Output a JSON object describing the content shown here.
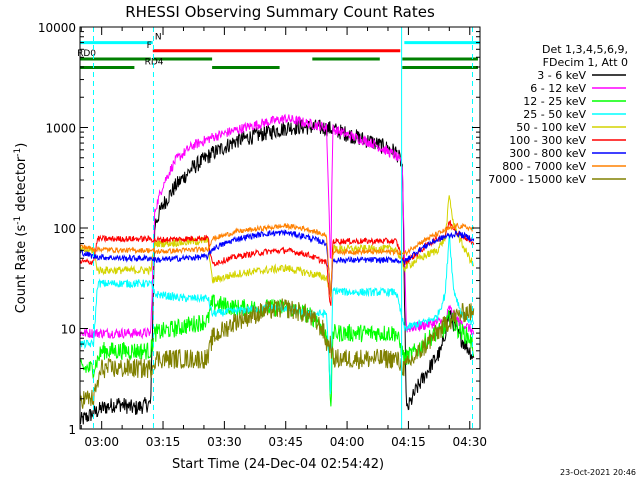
{
  "chart_data": {
    "type": "line",
    "title": "RHESSI Observing Summary Count Rates",
    "xlabel": "Start Time (24-Dec-04 02:54:42)",
    "ylabel": "Count Rate (s⁻¹ detector⁻¹)",
    "ylabel_parts": {
      "main": "Count Rate (s",
      "exp1": "-1",
      "mid": " detector",
      "exp2": "-1",
      "end": ")"
    },
    "yscale": "log",
    "ylim": [
      1,
      10000
    ],
    "xlim": [
      "02:54:42",
      "04:32:30"
    ],
    "xticks": [
      "03:00",
      "03:15",
      "03:30",
      "03:45",
      "04:00",
      "04:15",
      "04:30"
    ],
    "yticks": [
      "1",
      "10",
      "100",
      "1000",
      "10000"
    ],
    "timestamp": "23-Oct-2021 20:46",
    "legend": {
      "placement": "right",
      "header": [
        "Det 1,3,4,5,6,9,",
        "FDecim 1, Att 0"
      ],
      "entries": [
        {
          "name": "3 - 6 keV",
          "color": "#000000"
        },
        {
          "name": "6 - 12 keV",
          "color": "#ff00ff"
        },
        {
          "name": "12 - 25 keV",
          "color": "#00ff00"
        },
        {
          "name": "25 - 50 keV",
          "color": "#00ffff"
        },
        {
          "name": "50 - 100 keV",
          "color": "#d4d400"
        },
        {
          "name": "100 - 300 keV",
          "color": "#ff0000"
        },
        {
          "name": "300 - 800 keV",
          "color": "#0000ff"
        },
        {
          "name": "800 - 7000 keV",
          "color": "#ff8000"
        },
        {
          "name": "7000 - 15000 keV",
          "color": "#808000"
        }
      ]
    },
    "flags": [
      {
        "label": "N",
        "color": "#00ffff",
        "y_value": 7000,
        "segments": [
          [
            "02:54:42",
            "03:12:30"
          ],
          [
            "04:14:00",
            "04:32:30"
          ]
        ],
        "label_at": "03:13:00"
      },
      {
        "label": "F",
        "color": "#ff0000",
        "y_value": 5800,
        "segments": [
          [
            "03:12:30",
            "04:13:00"
          ]
        ],
        "label_at": "03:11:00"
      },
      {
        "label": "RD0",
        "color": "#008000",
        "y_value": 4800,
        "segments": [
          [
            "02:54:42",
            "03:12:00"
          ],
          [
            "03:12:30",
            "03:27:00"
          ],
          [
            "03:51:30",
            "04:08:00"
          ],
          [
            "04:13:30",
            "04:32:00"
          ]
        ],
        "label_at": "02:54:00"
      },
      {
        "label": "RD4",
        "color": "#008000",
        "y_value": 3950,
        "segments": [
          [
            "02:54:42",
            "03:08:00"
          ],
          [
            "03:27:00",
            "03:43:30"
          ],
          [
            "04:13:30",
            "04:32:00"
          ]
        ],
        "label_at": "03:10:30"
      }
    ],
    "vlines": [
      {
        "x": "02:54:42",
        "color": "#00ffff",
        "style": "solid"
      },
      {
        "x": "02:58:00",
        "color": "#00ffff",
        "style": "dashed"
      },
      {
        "x": "03:12:40",
        "color": "#00ffff",
        "style": "dashed"
      },
      {
        "x": "04:13:20",
        "color": "#00ffff",
        "style": "solid"
      },
      {
        "x": "04:30:40",
        "color": "#00ffff",
        "style": "dashed"
      }
    ],
    "series": [
      {
        "name": "3 - 6 keV",
        "color": "#000000",
        "noise": 0.08,
        "x": [
          "02:54:42",
          "03:00:00",
          "03:04:00",
          "03:08:00",
          "03:12:00",
          "03:13:00",
          "03:15:00",
          "03:18:00",
          "03:22:00",
          "03:27:00",
          "03:33:00",
          "03:40:00",
          "03:46:00",
          "03:52:00",
          "03:56:00",
          "04:00:00",
          "04:06:00",
          "04:12:00",
          "04:13:30",
          "04:14:30",
          "04:17:00",
          "04:20:00",
          "04:23:00",
          "04:25:00",
          "04:27:00",
          "04:30:00",
          "04:31:00"
        ],
        "y": [
          1.2,
          1.6,
          1.8,
          1.6,
          1.8,
          110,
          170,
          260,
          390,
          550,
          740,
          880,
          1010,
          1010,
          970,
          860,
          720,
          570,
          430,
          1.5,
          2.5,
          4,
          6,
          14,
          9,
          6,
          5
        ]
      },
      {
        "name": "6 - 12 keV",
        "color": "#ff00ff",
        "noise": 0.05,
        "x": [
          "02:54:42",
          "03:00:00",
          "03:05:00",
          "03:12:00",
          "03:13:00",
          "03:15:00",
          "03:18:00",
          "03:22:00",
          "03:27:00",
          "03:33:00",
          "03:40:00",
          "03:45:00",
          "03:50:00",
          "03:55:00",
          "03:56:00",
          "03:56:30",
          "03:57:00",
          "04:00:00",
          "04:06:00",
          "04:12:00",
          "04:13:30",
          "04:14:30",
          "04:20:00",
          "04:24:00",
          "04:25:00",
          "04:27:00",
          "04:30:00",
          "04:31:00"
        ],
        "y": [
          9,
          9,
          9,
          9,
          150,
          270,
          470,
          650,
          800,
          950,
          1120,
          1230,
          1110,
          1000,
          40,
          950,
          950,
          850,
          700,
          520,
          420,
          10,
          11,
          12,
          16,
          12,
          10,
          9
        ]
      },
      {
        "name": "12 - 25 keV",
        "color": "#00ff00",
        "noise": 0.09,
        "x": [
          "02:54:42",
          "02:58:00",
          "03:00:00",
          "03:06:00",
          "03:12:00",
          "03:13:00",
          "03:18:00",
          "03:22:00",
          "03:26:00",
          "03:27:00",
          "03:33:00",
          "03:40:00",
          "03:45:00",
          "03:50:00",
          "03:53:00",
          "03:55:00",
          "03:55:30",
          "03:56:00",
          "03:56:30",
          "04:00:00",
          "04:06:00",
          "04:12:00",
          "04:14:00",
          "04:17:00",
          "04:20:00",
          "04:24:00",
          "04:25:00",
          "04:27:00",
          "04:30:00",
          "04:31:00"
        ],
        "y": [
          4,
          4,
          6,
          6,
          6,
          9,
          10,
          11,
          12,
          18,
          16,
          16,
          16,
          14,
          12,
          8,
          8,
          1.2,
          9,
          9,
          9,
          9,
          5,
          6,
          8,
          10,
          13,
          10,
          8,
          6
        ]
      },
      {
        "name": "25 - 50 keV",
        "color": "#00ffff",
        "noise": 0.04,
        "x": [
          "02:54:42",
          "02:58:00",
          "02:59:00",
          "03:05:00",
          "03:12:00",
          "03:13:00",
          "03:20:00",
          "03:26:00",
          "03:27:00",
          "03:33:00",
          "03:40:00",
          "03:45:00",
          "03:50:00",
          "03:55:00",
          "03:56:00",
          "03:56:30",
          "04:00:00",
          "04:06:00",
          "04:12:00",
          "04:14:00",
          "04:17:00",
          "04:20:00",
          "04:22:00",
          "04:24:00",
          "04:25:00",
          "04:26:00",
          "04:28:00",
          "04:30:00",
          "04:31:00"
        ],
        "y": [
          7,
          7,
          28,
          28,
          28,
          22,
          20,
          20,
          14,
          15,
          16,
          16,
          14,
          14,
          2,
          24,
          23,
          23,
          23,
          10,
          11,
          12,
          13,
          22,
          90,
          25,
          14,
          12,
          11
        ]
      },
      {
        "name": "50 - 100 keV",
        "color": "#d4d400",
        "noise": 0.04,
        "x": [
          "02:54:42",
          "02:58:00",
          "02:59:00",
          "03:05:00",
          "03:12:00",
          "03:13:00",
          "03:20:00",
          "03:26:00",
          "03:27:00",
          "03:33:00",
          "03:40:00",
          "03:45:00",
          "03:50:00",
          "03:55:00",
          "03:56:00",
          "03:56:30",
          "04:00:00",
          "04:06:00",
          "04:12:00",
          "04:14:00",
          "04:17:00",
          "04:20:00",
          "04:22:00",
          "04:24:00",
          "04:25:00",
          "04:26:00",
          "04:28:00",
          "04:30:00",
          "04:31:00"
        ],
        "y": [
          60,
          60,
          38,
          38,
          38,
          70,
          72,
          75,
          30,
          35,
          38,
          40,
          36,
          32,
          20,
          62,
          62,
          62,
          62,
          40,
          48,
          55,
          60,
          80,
          210,
          110,
          70,
          50,
          42
        ]
      },
      {
        "name": "100 - 300 keV",
        "color": "#ff0000",
        "noise": 0.03,
        "x": [
          "02:54:42",
          "02:58:00",
          "02:59:00",
          "03:05:00",
          "03:12:00",
          "03:13:00",
          "03:20:00",
          "03:26:00",
          "03:27:00",
          "03:33:00",
          "03:40:00",
          "03:45:00",
          "03:50:00",
          "03:55:00",
          "03:56:00",
          "03:56:30",
          "04:00:00",
          "04:06:00",
          "04:12:00",
          "04:14:00",
          "04:17:00",
          "04:20:00",
          "04:24:00",
          "04:25:00",
          "04:27:00",
          "04:30:00",
          "04:31:00"
        ],
        "y": [
          46,
          46,
          78,
          78,
          78,
          76,
          78,
          80,
          44,
          52,
          58,
          60,
          55,
          45,
          15,
          74,
          74,
          74,
          74,
          45,
          55,
          70,
          85,
          115,
          90,
          75,
          68
        ]
      },
      {
        "name": "300 - 800 keV",
        "color": "#0000ff",
        "noise": 0.03,
        "x": [
          "02:54:42",
          "02:58:00",
          "03:05:00",
          "03:12:00",
          "03:13:00",
          "03:20:00",
          "03:26:00",
          "03:27:00",
          "03:33:00",
          "03:40:00",
          "03:45:00",
          "03:50:00",
          "03:55:00",
          "03:56:00",
          "03:56:30",
          "04:00:00",
          "04:06:00",
          "04:12:00",
          "04:14:00",
          "04:17:00",
          "04:20:00",
          "04:24:00",
          "04:27:00",
          "04:30:00",
          "04:31:00"
        ],
        "y": [
          58,
          52,
          50,
          50,
          48,
          50,
          52,
          62,
          78,
          88,
          90,
          82,
          70,
          20,
          48,
          48,
          48,
          48,
          46,
          58,
          70,
          82,
          88,
          80,
          75
        ]
      },
      {
        "name": "800 - 7000 keV",
        "color": "#ff8000",
        "noise": 0.025,
        "x": [
          "02:54:42",
          "02:58:00",
          "03:05:00",
          "03:12:00",
          "03:13:00",
          "03:20:00",
          "03:26:00",
          "03:27:00",
          "03:33:00",
          "03:40:00",
          "03:45:00",
          "03:50:00",
          "03:55:00",
          "03:56:00",
          "03:56:30",
          "04:00:00",
          "04:06:00",
          "04:12:00",
          "04:14:00",
          "04:17:00",
          "04:20:00",
          "04:24:00",
          "04:27:00",
          "04:30:00",
          "04:31:00"
        ],
        "y": [
          66,
          62,
          60,
          60,
          58,
          60,
          62,
          78,
          92,
          100,
          105,
          98,
          84,
          20,
          58,
          58,
          58,
          58,
          55,
          68,
          80,
          95,
          105,
          100,
          95
        ]
      },
      {
        "name": "7000 - 15000 keV",
        "color": "#808000",
        "noise": 0.1,
        "x": [
          "02:54:42",
          "02:58:00",
          "03:00:00",
          "03:06:00",
          "03:12:00",
          "03:13:00",
          "03:20:00",
          "03:26:00",
          "03:27:00",
          "03:33:00",
          "03:40:00",
          "03:45:00",
          "03:50:00",
          "03:54:00",
          "03:55:00",
          "03:56:00",
          "03:56:30",
          "04:00:00",
          "04:06:00",
          "04:12:00",
          "04:14:00",
          "04:18:00",
          "04:22:00",
          "04:25:00",
          "04:28:00",
          "04:30:00",
          "04:31:00"
        ],
        "y": [
          2,
          2,
          4,
          4,
          4,
          5,
          5,
          5,
          8,
          12,
          15,
          16,
          14,
          10,
          7,
          7,
          5,
          5,
          5,
          5,
          4,
          6,
          9,
          12,
          14,
          15,
          13
        ]
      }
    ]
  }
}
